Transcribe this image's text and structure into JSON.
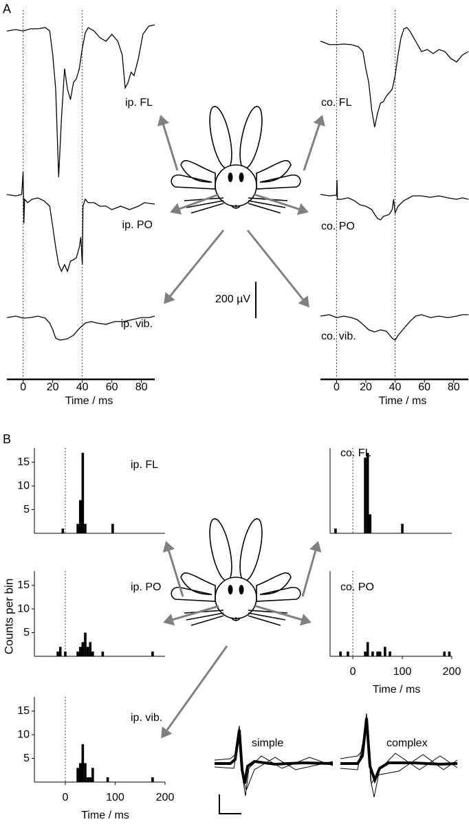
{
  "panel_labels": [
    "A",
    "B"
  ],
  "scale_bar": {
    "value": 200,
    "label": "200 µV"
  },
  "y_label": "Counts per bin",
  "waveform_labels": [
    "simple",
    "complex"
  ],
  "chart_data": [
    {
      "type": "line",
      "title": "ip. FL",
      "xlim": [
        -11,
        89
      ],
      "x": [
        -11,
        -5,
        0,
        5,
        10,
        15,
        18,
        20,
        22,
        24,
        26,
        28,
        30,
        32,
        34,
        36,
        38,
        40,
        42,
        44,
        48,
        52,
        56,
        60,
        64,
        67,
        69,
        71,
        73,
        75,
        78,
        81,
        85,
        89
      ],
      "values": [
        -8,
        0,
        -8,
        4,
        4,
        11,
        -8,
        -139,
        -328,
        -810,
        -479,
        -215,
        -328,
        -385,
        -290,
        -271,
        -215,
        -102,
        -19,
        11,
        -8,
        -45,
        -64,
        -26,
        -64,
        -139,
        -320,
        -290,
        -234,
        -253,
        -158,
        -26,
        19,
        26
      ]
    },
    {
      "type": "line",
      "title": "ip. PO",
      "xlim": [
        -11,
        89
      ],
      "x": [
        -11,
        -5,
        -1,
        0,
        0.5,
        1,
        3,
        6,
        10,
        14,
        18,
        20,
        22,
        24,
        26,
        28,
        30,
        32,
        34,
        36,
        38,
        39,
        40,
        40.5,
        42,
        44,
        48,
        52,
        56,
        60,
        66,
        72,
        78,
        82,
        89
      ],
      "values": [
        0,
        -8,
        0,
        124,
        -158,
        -26,
        -45,
        -26,
        -19,
        -34,
        -64,
        -177,
        -290,
        -385,
        -422,
        -385,
        -422,
        -366,
        -358,
        -347,
        -290,
        -234,
        -385,
        -64,
        -26,
        -45,
        -45,
        -64,
        -64,
        -83,
        -64,
        -83,
        -64,
        -45,
        -53
      ]
    },
    {
      "type": "line",
      "title": "ip. vib.",
      "xlim": [
        -11,
        89
      ],
      "xticks": [
        0,
        20,
        40,
        60,
        80
      ],
      "xlabel": "Time / ms",
      "vlines": [
        0,
        40
      ],
      "x": [
        -11,
        -5,
        0,
        5,
        10,
        15,
        18,
        20,
        22,
        25,
        30,
        34,
        38,
        42,
        46,
        50,
        56,
        62,
        68,
        74,
        80,
        85,
        89
      ],
      "values": [
        -8,
        0,
        -11,
        -8,
        0,
        -11,
        -38,
        -75,
        -121,
        -132,
        -124,
        -105,
        -68,
        -38,
        -30,
        -38,
        -45,
        -30,
        -30,
        -19,
        -8,
        -8,
        0
      ]
    },
    {
      "type": "line",
      "title": "co. FL",
      "xlim": [
        -11,
        90
      ],
      "x": [
        -11,
        -5,
        0,
        5,
        10,
        15,
        18,
        20,
        22,
        24,
        26,
        28,
        30,
        32,
        34,
        38,
        40,
        42,
        44,
        46,
        48,
        50,
        54,
        58,
        62,
        66,
        70,
        74,
        78,
        82,
        86,
        90
      ],
      "values": [
        8,
        -11,
        -11,
        -8,
        -11,
        -23,
        -49,
        -143,
        -219,
        -369,
        -464,
        -388,
        -332,
        -324,
        -294,
        -256,
        -181,
        -68,
        26,
        75,
        83,
        64,
        8,
        -49,
        -38,
        -60,
        -38,
        -49,
        -87,
        -106,
        -68,
        -49
      ]
    },
    {
      "type": "line",
      "title": "co. PO",
      "xlim": [
        -11,
        90
      ],
      "x": [
        -11,
        -5,
        0,
        0.3,
        0.6,
        3,
        8,
        12,
        16,
        20,
        24,
        26,
        28,
        30,
        32,
        36,
        38,
        39,
        40,
        42,
        46,
        52,
        58,
        64,
        70,
        76,
        82,
        86,
        90
      ],
      "values": [
        8,
        0,
        4,
        87,
        -19,
        -19,
        -11,
        -26,
        -49,
        -57,
        -75,
        -102,
        -124,
        -132,
        -113,
        -102,
        -75,
        -19,
        -94,
        -57,
        -26,
        0,
        0,
        -8,
        0,
        -11,
        -19,
        -11,
        -19
      ]
    },
    {
      "type": "line",
      "title": "co. vib.",
      "xlim": [
        -11,
        90
      ],
      "xticks": [
        0,
        20,
        40,
        60,
        80
      ],
      "xlabel": "Time / ms",
      "vlines": [
        0,
        40
      ],
      "x": [
        -11,
        -5,
        0,
        5,
        10,
        14,
        18,
        22,
        26,
        30,
        34,
        38,
        40,
        42,
        46,
        50,
        54,
        58,
        64,
        70,
        76,
        82,
        86,
        90
      ],
      "values": [
        0,
        8,
        -8,
        0,
        -8,
        -19,
        -45,
        -75,
        -87,
        -75,
        -83,
        -121,
        -132,
        -106,
        -68,
        -30,
        0,
        8,
        -8,
        0,
        -8,
        0,
        8,
        8
      ]
    },
    {
      "type": "bar",
      "title": "ip. FL",
      "xlim": [
        -62,
        200
      ],
      "ylim": [
        0,
        18
      ],
      "yticks": [
        5,
        10,
        15
      ],
      "vlines": [
        0
      ],
      "x": [
        -5,
        25,
        30,
        35,
        40,
        95
      ],
      "values": [
        1,
        2,
        7,
        17,
        2,
        2
      ]
    },
    {
      "type": "bar",
      "title": "ip. PO",
      "xlim": [
        -62,
        200
      ],
      "ylim": [
        0,
        18
      ],
      "yticks": [
        5,
        10,
        15
      ],
      "vlines": [
        0
      ],
      "x": [
        -15,
        -10,
        0,
        25,
        30,
        35,
        40,
        45,
        50,
        55,
        75,
        175
      ],
      "values": [
        1,
        2,
        1,
        1,
        2,
        3,
        5,
        2,
        3,
        1,
        1,
        1
      ]
    },
    {
      "type": "bar",
      "title": "ip. vib.",
      "xlim": [
        -62,
        200
      ],
      "ylim": [
        0,
        18
      ],
      "yticks": [
        5,
        10,
        15
      ],
      "vlines": [
        0
      ],
      "xticks": [
        0,
        100,
        200
      ],
      "xlabel": "Time / ms",
      "x": [
        25,
        30,
        35,
        40,
        45,
        50,
        55,
        85,
        175
      ],
      "values": [
        3,
        4,
        8,
        4,
        1,
        1,
        3,
        1,
        1
      ]
    },
    {
      "type": "bar",
      "title": "co. FL",
      "xlim": [
        -46,
        200
      ],
      "ylim": [
        0,
        18
      ],
      "vlines": [
        0
      ],
      "x": [
        -35,
        25,
        30,
        35,
        100
      ],
      "values": [
        1,
        16,
        17,
        4,
        2
      ]
    },
    {
      "type": "bar",
      "title": "co. PO",
      "xlim": [
        -46,
        200
      ],
      "ylim": [
        0,
        18
      ],
      "vlines": [
        0
      ],
      "xticks": [
        0,
        100,
        200
      ],
      "xlabel": "Time / ms",
      "x": [
        -25,
        -10,
        25,
        30,
        40,
        50,
        55,
        65,
        75,
        185,
        195
      ],
      "values": [
        1,
        1,
        1,
        3,
        1,
        1,
        1,
        2,
        1,
        1,
        1
      ]
    }
  ]
}
